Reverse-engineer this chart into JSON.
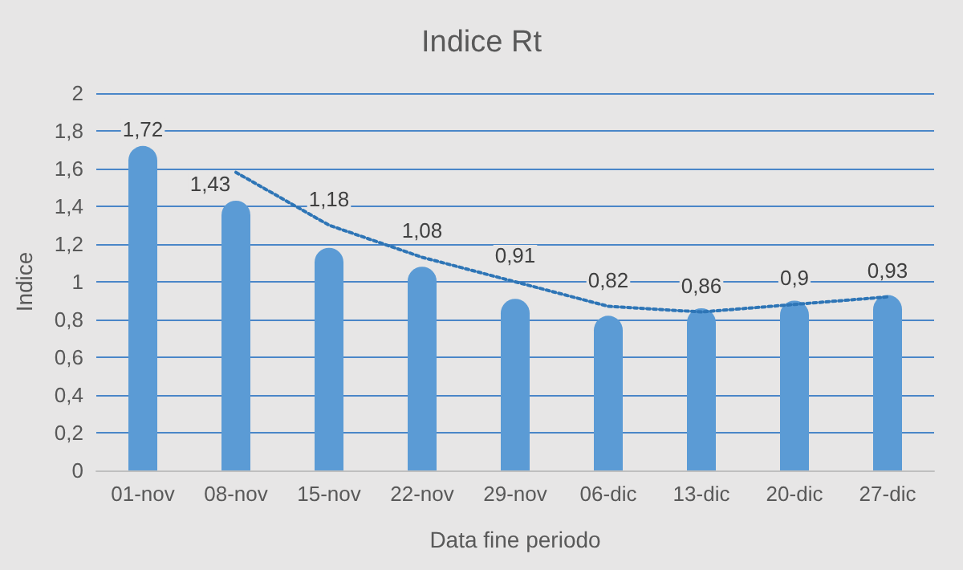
{
  "chart_data": {
    "type": "bar",
    "title": "Indice Rt",
    "xlabel": "Data fine periodo",
    "ylabel": "Indice",
    "categories": [
      "01-nov",
      "08-nov",
      "15-nov",
      "22-nov",
      "29-nov",
      "06-dic",
      "13-dic",
      "20-dic",
      "27-dic"
    ],
    "series": [
      {
        "color": "#5b9bd5",
        "values": [
          1.72,
          1.43,
          1.18,
          1.08,
          0.91,
          0.82,
          0.86,
          0.9,
          0.93
        ],
        "value_labels": [
          "1,72",
          "1,43",
          "1,18",
          "1,08",
          "0,91",
          "0,82",
          "0,86",
          "0,9",
          "0,93"
        ]
      },
      {
        "type": "line",
        "color": "#2e75b6",
        "line_style": "dotted",
        "values": [
          null,
          1.58,
          1.3,
          1.13,
          1.0,
          0.87,
          0.84,
          0.88,
          0.92
        ]
      }
    ],
    "ylim": [
      0,
      2
    ],
    "yticks": [
      0,
      {
        "value": 0.2,
        "label": "0,2"
      },
      {
        "value": 0.4,
        "label": "0,4"
      },
      {
        "value": 0.6,
        "label": "0,6"
      },
      {
        "value": 0.8,
        "label": "0,8"
      },
      1,
      {
        "value": 1.2,
        "label": "1,2"
      },
      {
        "value": 1.4,
        "label": "1,4"
      },
      {
        "value": 1.6,
        "label": "1,6"
      },
      {
        "value": 1.8,
        "label": "1,8"
      },
      2
    ],
    "grid": "y"
  }
}
